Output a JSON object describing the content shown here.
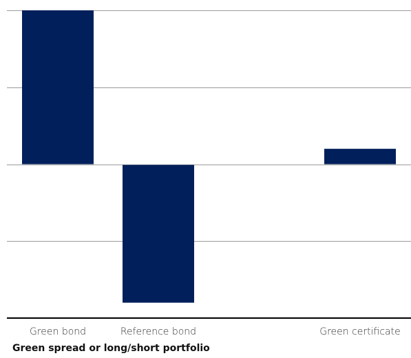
{
  "chart_data": {
    "type": "bar",
    "categories": [
      "Green bond",
      "Reference bond",
      "Green certificate"
    ],
    "values": [
      1.0,
      -0.9,
      0.1
    ],
    "ylim": [
      -1.0,
      1.0
    ],
    "grid": true,
    "bar_color": "#001f5b",
    "gridline_color": "#9a9a9a",
    "axis_color": "#000000",
    "footer": "Green spread or long/short portfolio"
  }
}
